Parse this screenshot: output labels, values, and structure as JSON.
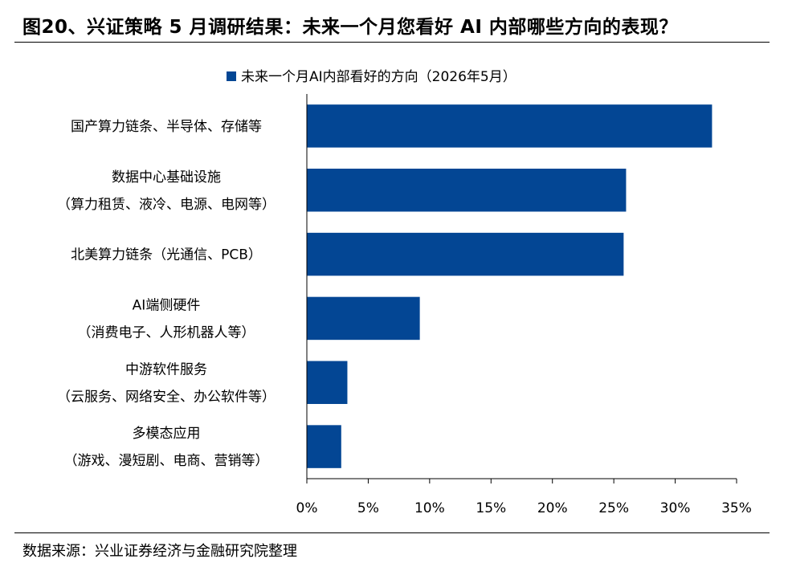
{
  "title": "图20、兴证策略 5 月调研结果：未来一个月您看好 AI 内部哪些方向的表现？",
  "source": "数据来源：兴业证券经济与金融研究院整理",
  "colors": {
    "bar": "#034694"
  },
  "chart_data": {
    "type": "bar",
    "orientation": "horizontal",
    "title": "",
    "xlabel": "",
    "ylabel": "",
    "legend": {
      "position": "top-center",
      "entries": [
        "未来一个月AI内部看好的方向（2026年5月）"
      ]
    },
    "series": [
      {
        "name": "未来一个月AI内部看好的方向（2026年5月）",
        "values": [
          33.0,
          26.0,
          25.8,
          9.2,
          3.3,
          2.8
        ]
      }
    ],
    "categories": [
      [
        "国产算力链条、半导体、存储等"
      ],
      [
        "数据中心基础设施",
        "（算力租赁、液冷、电源、电网等）"
      ],
      [
        "北美算力链条（光通信、PCB）"
      ],
      [
        "AI端侧硬件",
        "（消费电子、人形机器人等）"
      ],
      [
        "中游软件服务",
        "（云服务、网络安全、办公软件等）"
      ],
      [
        "多模态应用",
        "（游戏、漫短剧、电商、营销等）"
      ]
    ],
    "xlim": [
      0,
      35
    ],
    "xticks": [
      0,
      5,
      10,
      15,
      20,
      25,
      30,
      35
    ],
    "xtick_labels": [
      "0%",
      "5%",
      "10%",
      "15%",
      "20%",
      "25%",
      "30%",
      "35%"
    ],
    "grid": false
  }
}
